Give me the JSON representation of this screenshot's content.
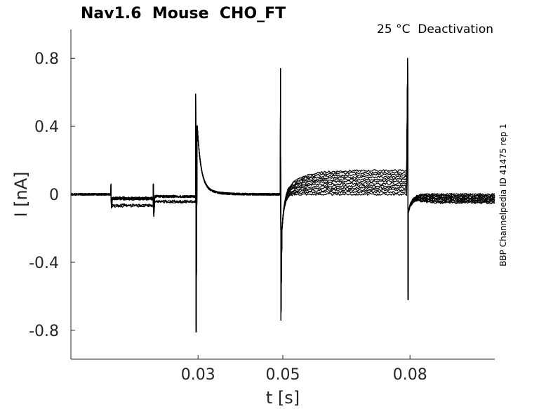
{
  "chart_data": {
    "type": "line",
    "title": "Nav1.6  Mouse  CHO_FT",
    "subtitle": "25 °C  Deactivation",
    "side_note": "BBP Channelpedia ID 41475 rep 1",
    "xlabel": "t [s]",
    "ylabel": "I [nA]",
    "xlim": [
      0.0,
      0.1
    ],
    "ylim": [
      -0.97,
      0.97
    ],
    "x_ticks": [
      0.03,
      0.05,
      0.08
    ],
    "x_tick_labels": [
      "0.03",
      "0.05",
      "0.08"
    ],
    "y_ticks": [
      0.8,
      0.4,
      0,
      -0.4,
      -0.8
    ],
    "y_tick_labels": [
      "0.8",
      "0.4",
      "0",
      "-0.4",
      "-0.8"
    ],
    "grid": false,
    "legend": "none",
    "line_color": "#000000",
    "transients": [
      {
        "t": 0.0095,
        "peak": 0.06,
        "trough": -0.08
      },
      {
        "t": 0.0195,
        "peak": 0.06,
        "trough": -0.13
      },
      {
        "t": 0.0295,
        "peak": 0.59,
        "trough": -0.81
      },
      {
        "t": 0.0495,
        "peak": 0.74,
        "trough": -0.74
      },
      {
        "t": 0.0795,
        "peak": 0.8,
        "trough": -0.62
      }
    ],
    "series_summary": {
      "count": 12,
      "baseline_nA": 0.0,
      "step1_level_range_nA": [
        -0.07,
        -0.02
      ],
      "plateau_0.05_to_0.08_range_nA": [
        0.0,
        0.14
      ],
      "tail_after_0.08_range_nA": [
        -0.05,
        0.0
      ]
    }
  }
}
